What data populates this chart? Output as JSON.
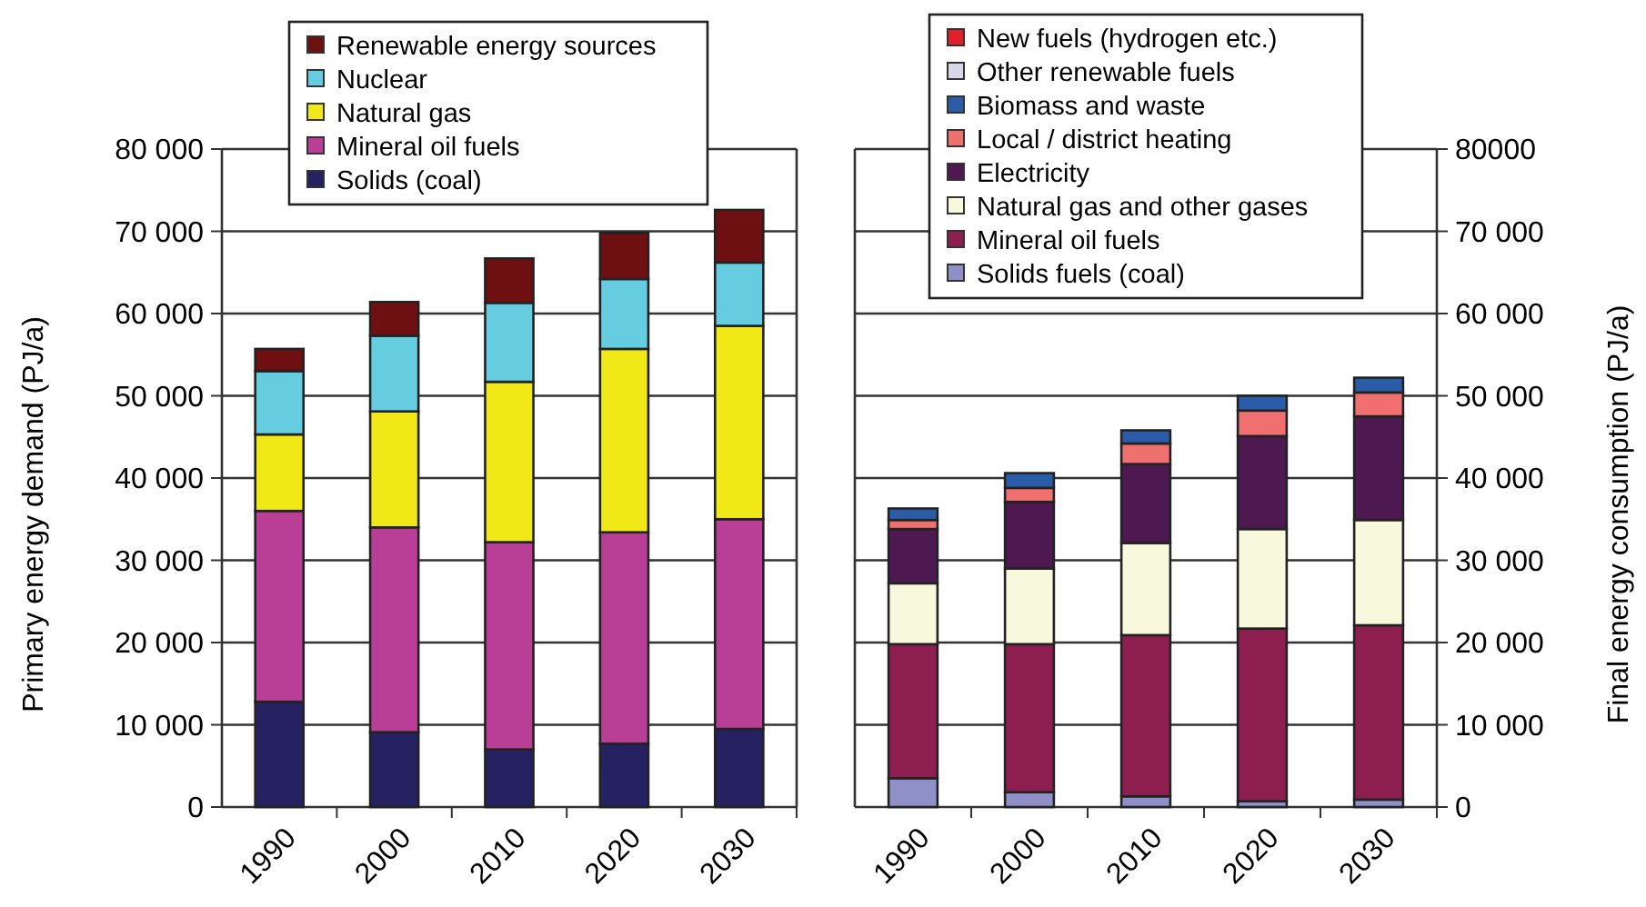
{
  "chart_data": [
    {
      "type": "bar",
      "stacked": true,
      "ylabel": "Primary energy demand (PJ/a)",
      "categories": [
        "1990",
        "2000",
        "2010",
        "2020",
        "2030"
      ],
      "ylim": [
        0,
        80000
      ],
      "yticks": [
        0,
        {
          "value": 10000,
          "label": "10 000"
        },
        {
          "value": 20000,
          "label": "20 000"
        },
        {
          "value": 30000,
          "label": "30 000"
        },
        {
          "value": 40000,
          "label": "40 000"
        },
        {
          "value": 50000,
          "label": "50 000"
        },
        {
          "value": 60000,
          "label": "60 000"
        },
        {
          "value": 70000,
          "label": "70 000"
        },
        {
          "value": 80000,
          "label": "80 000"
        }
      ],
      "grid": "y",
      "legend": "top",
      "series": [
        {
          "name": "Solids (coal)",
          "color": "#262262",
          "values": [
            12800,
            9100,
            7000,
            7700,
            9500
          ]
        },
        {
          "name": "Mineral oil fuels",
          "color": "#b83f95",
          "values": [
            23200,
            24900,
            25200,
            25700,
            25500
          ]
        },
        {
          "name": "Natural gas",
          "color": "#f0e817",
          "values": [
            9300,
            14100,
            19500,
            22300,
            23500
          ]
        },
        {
          "name": "Nuclear",
          "color": "#66cce0",
          "values": [
            7700,
            9200,
            9600,
            8500,
            7700
          ]
        },
        {
          "name": "Renewable energy sources",
          "color": "#6e0f12",
          "values": [
            2700,
            4100,
            5400,
            5600,
            6400
          ]
        }
      ]
    },
    {
      "type": "bar",
      "stacked": true,
      "y2label": "Final energy consumption (PJ/a)",
      "categories": [
        "1990",
        "2000",
        "2010",
        "2020",
        "2030"
      ],
      "y2lim": [
        0,
        80000
      ],
      "y2ticks": [
        0,
        {
          "value": 10000,
          "label": "10 000"
        },
        {
          "value": 20000,
          "label": "20 000"
        },
        {
          "value": 30000,
          "label": "30 000"
        },
        {
          "value": 40000,
          "label": "40 000"
        },
        {
          "value": 50000,
          "label": "50 000"
        },
        {
          "value": 60000,
          "label": "60 000"
        },
        {
          "value": 70000,
          "label": "70 000"
        },
        80000
      ],
      "grid": "y",
      "legend": "top",
      "series": [
        {
          "name": "Solids fuels (coal)",
          "color": "#9090c8",
          "axis": "y2",
          "values": [
            3500,
            1800,
            1300,
            700,
            900
          ]
        },
        {
          "name": "Mineral oil fuels",
          "color": "#8c1f50",
          "axis": "y2",
          "values": [
            16300,
            18000,
            19600,
            21000,
            21200
          ]
        },
        {
          "name": "Natural gas and other gases",
          "color": "#f8f8dc",
          "axis": "y2",
          "values": [
            7400,
            9200,
            11200,
            12100,
            12800
          ]
        },
        {
          "name": "Electricity",
          "color": "#4e1850",
          "axis": "y2",
          "values": [
            6600,
            8100,
            9600,
            11300,
            12600
          ]
        },
        {
          "name": "Local / district heating",
          "color": "#f07070",
          "axis": "y2",
          "values": [
            1100,
            1700,
            2500,
            3100,
            2900
          ]
        },
        {
          "name": "Biomass and waste",
          "color": "#2a5ca8",
          "axis": "y2",
          "values": [
            1400,
            1800,
            1600,
            1800,
            1800
          ]
        },
        {
          "name": "Other renewable fuels",
          "color": "#d8d8e8",
          "axis": "y2",
          "values": [
            0,
            0,
            0,
            0,
            0
          ]
        },
        {
          "name": "New fuels (hydrogen etc.)",
          "color": "#e0202a",
          "axis": "y2",
          "values": [
            0,
            0,
            0,
            0,
            0
          ]
        }
      ]
    }
  ]
}
